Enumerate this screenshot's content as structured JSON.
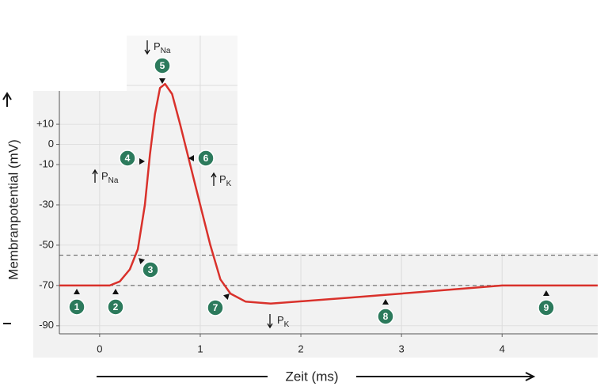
{
  "chart_data": {
    "type": "line",
    "x_label": "Zeit (ms)",
    "y_label": "Membranpotential (mV)",
    "xlim": [
      -0.4,
      4.95
    ],
    "ylim": [
      -94,
      54
    ],
    "xticks": [
      0,
      1,
      2,
      3,
      4
    ],
    "yticks": [
      {
        "value": 10,
        "label": "+10"
      },
      0,
      -10,
      -30,
      -50,
      -70,
      -90
    ],
    "grid": true,
    "thresholds": [
      -55,
      -70
    ],
    "series": [
      {
        "color": "#d9312b",
        "x": [
          -0.4,
          0.1,
          0.2,
          0.3,
          0.38,
          0.45,
          0.5,
          0.55,
          0.6,
          0.65,
          0.72,
          0.8,
          0.9,
          1.0,
          1.1,
          1.2,
          1.3,
          1.45,
          1.7,
          2.5,
          3.0,
          4.0,
          4.95
        ],
        "values": [
          -70,
          -70,
          -68,
          -62,
          -52,
          -30,
          -5,
          15,
          28,
          30,
          25,
          10,
          -10,
          -30,
          -50,
          -67,
          -74,
          -78,
          -79,
          -76,
          -74,
          -70,
          -70
        ]
      }
    ],
    "markers": [
      "1",
      "2",
      "3",
      "4",
      "5",
      "6",
      "7",
      "8",
      "9"
    ],
    "permeability_labels": [
      {
        "text": "P",
        "sub": "Na"
      },
      {
        "text": "P",
        "sub": "Na"
      },
      {
        "text": "P",
        "sub": "K"
      },
      {
        "text": "P",
        "sub": "K"
      }
    ]
  }
}
